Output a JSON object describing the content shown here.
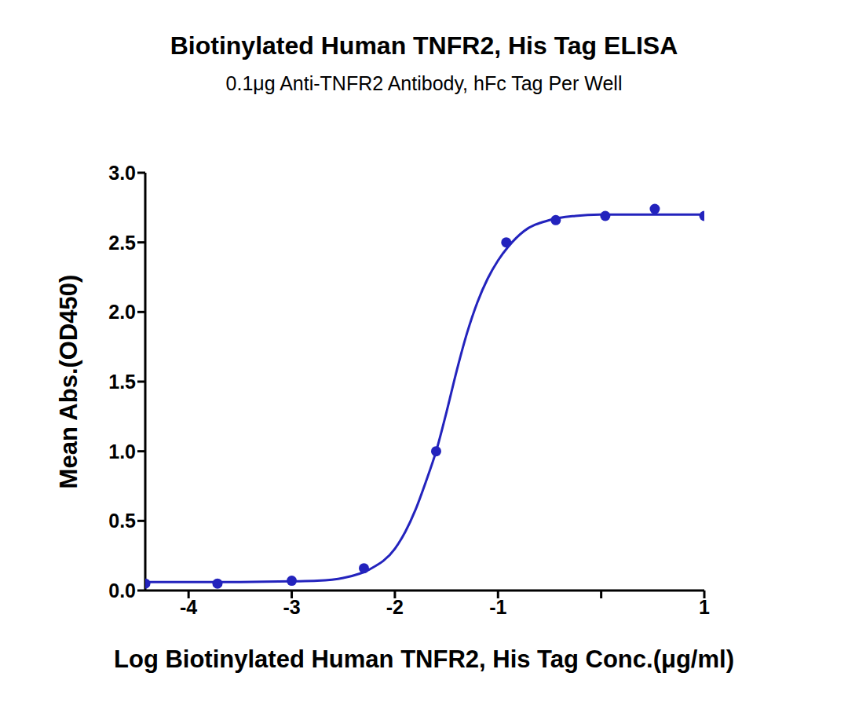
{
  "chart_data": {
    "type": "scatter",
    "title": "Biotinylated Human TNFR2, His Tag ELISA",
    "subtitle": "0.1μg Anti-TNFR2 Antibody, hFc Tag Per Well",
    "x_label": "Log Biotinylated Human TNFR2, His Tag Conc.(μg/ml)",
    "y_label": "Mean Abs.(OD450)",
    "x": [
      -4.42,
      -3.72,
      -3.0,
      -2.3,
      -1.6,
      -0.92,
      -0.44,
      0.04,
      0.52,
      1.0
    ],
    "values": [
      0.05,
      0.05,
      0.07,
      0.16,
      1.0,
      2.5,
      2.66,
      2.69,
      2.74,
      2.69
    ],
    "color": "#2323bd",
    "marker": "circle",
    "line_style": "solid",
    "fit_curve": {
      "x": [
        -4.42,
        -4.0,
        -3.5,
        -3.0,
        -2.75,
        -2.5,
        -2.25,
        -2.0,
        -1.9,
        -1.8,
        -1.7,
        -1.6,
        -1.5,
        -1.4,
        -1.3,
        -1.2,
        -1.1,
        -1.0,
        -0.9,
        -0.75,
        -0.5,
        -0.25,
        0.0,
        0.5,
        1.0
      ],
      "values": [
        0.06,
        0.06,
        0.061,
        0.066,
        0.07,
        0.09,
        0.15,
        0.3,
        0.42,
        0.58,
        0.78,
        1.0,
        1.28,
        1.58,
        1.85,
        2.07,
        2.24,
        2.37,
        2.47,
        2.58,
        2.66,
        2.69,
        2.7,
        2.7,
        2.7
      ]
    },
    "xlim": [
      -4.42,
      1
    ],
    "xticks": [
      -4,
      -3,
      -2,
      -1,
      0,
      1
    ],
    "ylim": [
      0,
      3
    ],
    "yticks": [
      {
        "value": 0,
        "label": "0.0"
      },
      {
        "value": 0.5,
        "label": "0.5"
      },
      {
        "value": 1,
        "label": "1.0"
      },
      {
        "value": 1.5,
        "label": "1.5"
      },
      {
        "value": 2,
        "label": "2.0"
      },
      {
        "value": 2.5,
        "label": "2.5"
      },
      {
        "value": 3,
        "label": "3.0"
      }
    ],
    "grid": false
  }
}
